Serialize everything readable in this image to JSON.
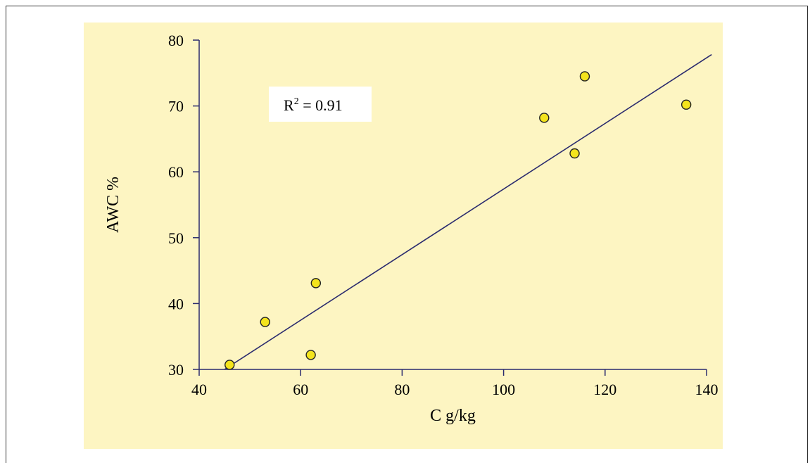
{
  "colors": {
    "plot_background": "#fdf5c2",
    "axis": "#2b2b6e",
    "trendline": "#2b2b6e",
    "marker_fill": "#f4e41c",
    "marker_stroke": "#222222",
    "annotation_box": "#ffffff"
  },
  "chart_data": {
    "type": "scatter",
    "title": "",
    "xlabel": "C g/kg",
    "ylabel": "AWC %",
    "xlim": [
      40,
      140
    ],
    "ylim": [
      30,
      80
    ],
    "x_ticks": [
      40,
      60,
      80,
      100,
      120,
      140
    ],
    "y_ticks": [
      30,
      40,
      50,
      60,
      70,
      80
    ],
    "grid": false,
    "points": [
      {
        "x": 46,
        "y": 30.7
      },
      {
        "x": 53,
        "y": 37.2
      },
      {
        "x": 62,
        "y": 32.2
      },
      {
        "x": 63,
        "y": 43.1
      },
      {
        "x": 108,
        "y": 68.2
      },
      {
        "x": 114,
        "y": 62.8
      },
      {
        "x": 116,
        "y": 74.5
      },
      {
        "x": 136,
        "y": 70.2
      }
    ],
    "trendline": {
      "x": [
        45,
        141
      ],
      "y": [
        30,
        77.8
      ]
    },
    "annotation": {
      "base": "R",
      "sup": "2",
      "rest": " = 0.91"
    }
  }
}
